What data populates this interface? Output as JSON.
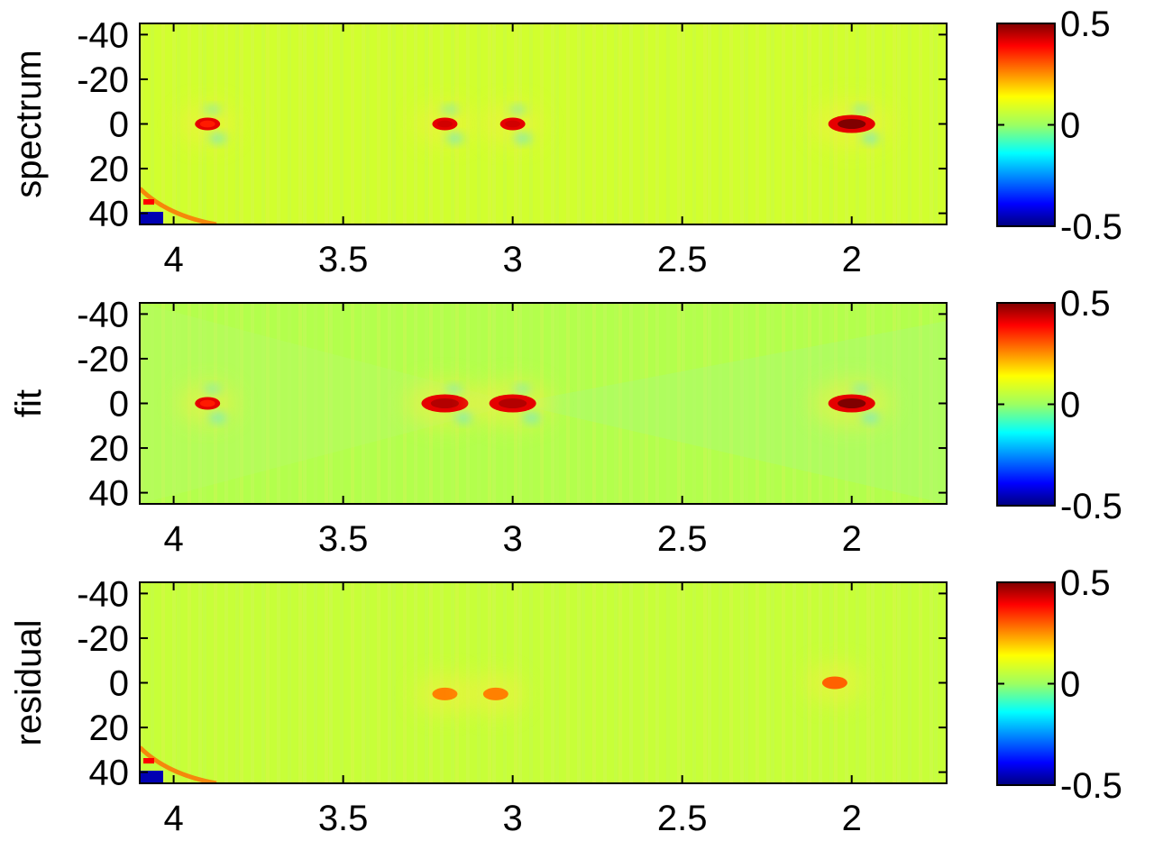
{
  "chart_data": [
    {
      "type": "heatmap",
      "ylabel": "spectrum",
      "x_ticks": [
        "4",
        "3.5",
        "3",
        "2.5",
        "2"
      ],
      "x_tick_values": [
        4,
        3.5,
        3,
        2.5,
        2
      ],
      "xlim": [
        4.1,
        1.72
      ],
      "y_ticks": [
        "-40",
        "-20",
        "0",
        "20",
        "40"
      ],
      "y_tick_values": [
        -40,
        -20,
        0,
        20,
        40
      ],
      "ylim": [
        -45,
        45
      ],
      "colorbar": {
        "ticks": [
          "0.5",
          "0",
          "-0.5"
        ],
        "range": [
          -0.5,
          0.5
        ],
        "colormap": "jet"
      },
      "background_value": 0.08,
      "features": [
        {
          "x": 3.9,
          "y": 0,
          "value": 0.35
        },
        {
          "x": 3.2,
          "y": 0,
          "value": 0.42
        },
        {
          "x": 3.0,
          "y": 0,
          "value": 0.42
        },
        {
          "x": 2.0,
          "y": 0,
          "value": 0.5
        },
        {
          "x": 4.08,
          "y": 42,
          "value": -0.45
        }
      ]
    },
    {
      "type": "heatmap",
      "ylabel": "fit",
      "x_ticks": [
        "4",
        "3.5",
        "3",
        "2.5",
        "2"
      ],
      "x_tick_values": [
        4,
        3.5,
        3,
        2.5,
        2
      ],
      "xlim": [
        4.1,
        1.72
      ],
      "y_ticks": [
        "-40",
        "-20",
        "0",
        "20",
        "40"
      ],
      "y_tick_values": [
        -40,
        -20,
        0,
        20,
        40
      ],
      "ylim": [
        -45,
        45
      ],
      "colorbar": {
        "ticks": [
          "0.5",
          "0",
          "-0.5"
        ],
        "range": [
          -0.5,
          0.5
        ],
        "colormap": "jet"
      },
      "background_value": 0.05,
      "features": [
        {
          "x": 3.9,
          "y": 0,
          "value": 0.35
        },
        {
          "x": 3.2,
          "y": 0,
          "value": 0.45
        },
        {
          "x": 3.0,
          "y": 0,
          "value": 0.45
        },
        {
          "x": 2.0,
          "y": 0,
          "value": 0.5
        }
      ]
    },
    {
      "type": "heatmap",
      "ylabel": "residual",
      "x_ticks": [
        "4",
        "3.5",
        "3",
        "2.5",
        "2"
      ],
      "x_tick_values": [
        4,
        3.5,
        3,
        2.5,
        2
      ],
      "xlim": [
        4.1,
        1.72
      ],
      "y_ticks": [
        "-40",
        "-20",
        "0",
        "20",
        "40"
      ],
      "y_tick_values": [
        -40,
        -20,
        0,
        20,
        40
      ],
      "ylim": [
        -45,
        45
      ],
      "colorbar": {
        "ticks": [
          "0.5",
          "0",
          "-0.5"
        ],
        "range": [
          -0.5,
          0.5
        ],
        "colormap": "jet"
      },
      "background_value": 0.07,
      "features": [
        {
          "x": 3.2,
          "y": 5,
          "value": 0.15
        },
        {
          "x": 3.05,
          "y": 5,
          "value": 0.15
        },
        {
          "x": 2.05,
          "y": 0,
          "value": 0.18
        },
        {
          "x": 4.08,
          "y": 42,
          "value": -0.45
        }
      ]
    }
  ]
}
